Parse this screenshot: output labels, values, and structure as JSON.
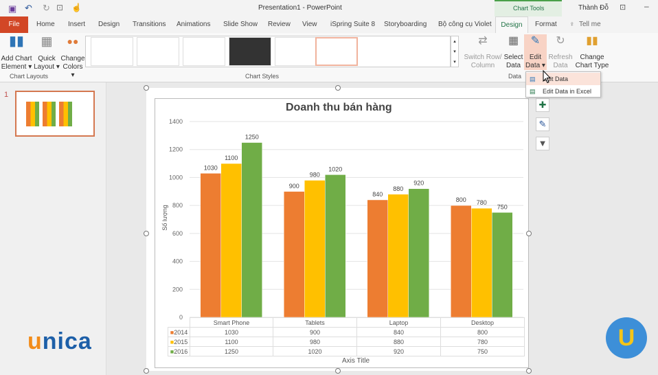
{
  "titlebar": {
    "title": "Presentation1 - PowerPoint",
    "context_tab": "Chart Tools",
    "user": "Thành Đỗ"
  },
  "tabs": [
    "File",
    "Home",
    "Insert",
    "Design",
    "Transitions",
    "Animations",
    "Slide Show",
    "Review",
    "View",
    "iSpring Suite 8",
    "Storyboarding",
    "Bộ công cụ Violet",
    "Design",
    "Format",
    "Tell me"
  ],
  "ribbon": {
    "add_chart_element": "Add Chart Element ▾",
    "quick_layout": "Quick Layout ▾",
    "change_colors": "Change Colors ▾",
    "chart_layouts": "Chart Layouts",
    "chart_styles": "Chart Styles",
    "switch_row": "Switch Row/ Column",
    "select_data": "Select Data",
    "edit_data": "Edit Data ▾",
    "refresh_data": "Refresh Data",
    "change_type": "Change Chart Type",
    "data_group": "Data"
  },
  "menu": {
    "edit_data": "Edit Data",
    "edit_excel": "Edit Data in Excel"
  },
  "slide_number": "1",
  "logos": {
    "unica": "unica",
    "badge": "U"
  },
  "colors": {
    "file_tab": "#d24726",
    "context": "#217346",
    "s2014": "#ed7d31",
    "s2015": "#ffc000",
    "s2016": "#70ad47"
  },
  "chart_data": {
    "type": "bar",
    "title": "Doanh thu bán hàng",
    "ylabel": "Số lượng",
    "xlabel": "Axis Title",
    "categories": [
      "Smart Phone",
      "Tablets",
      "Laptop",
      "Desktop"
    ],
    "series": [
      {
        "name": "2014",
        "values": [
          1030,
          900,
          840,
          800
        ]
      },
      {
        "name": "2015",
        "values": [
          1100,
          980,
          880,
          780
        ]
      },
      {
        "name": "2016",
        "values": [
          1250,
          1020,
          920,
          750
        ]
      }
    ],
    "ylim": [
      0,
      1400
    ],
    "yticks": [
      0,
      200,
      400,
      600,
      800,
      1000,
      1200,
      1400
    ],
    "grid": true,
    "data_table": true
  }
}
